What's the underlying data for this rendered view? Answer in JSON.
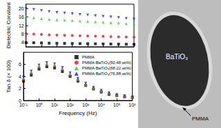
{
  "chart_data": [
    {
      "type": "scatter",
      "ylabel": "Dielectric Constant",
      "log": "x",
      "tick_labels": "y",
      "x": [
        0.1,
        0.316,
        1,
        3.16,
        10,
        31.6,
        100,
        316,
        1000,
        3162,
        10000,
        31623,
        100000,
        316228,
        1000000
      ],
      "xlim": [
        0.1,
        1000000
      ],
      "xticks": [
        0.1,
        1,
        10,
        100,
        1000,
        10000,
        100000,
        1000000
      ],
      "ylim": [
        2,
        22
      ],
      "yticks": [
        4,
        8,
        12,
        16,
        20
      ],
      "series": [
        {
          "color": "#000000",
          "marker": "square",
          "values": [
            4.0,
            3.9,
            3.8,
            3.7,
            3.65,
            3.6,
            3.55,
            3.5,
            3.45,
            3.4,
            3.35,
            3.3,
            3.25,
            3.2,
            3.15
          ]
        },
        {
          "color": "#e8141c",
          "marker": "circle",
          "values": [
            8.2,
            8.0,
            7.8,
            7.6,
            7.5,
            7.4,
            7.3,
            7.2,
            7.1,
            7.0,
            6.9,
            6.8,
            6.7,
            6.6,
            6.5
          ]
        },
        {
          "color": "#1fd61f",
          "marker": "triangle",
          "values": [
            16.0,
            15.6,
            15.2,
            14.9,
            14.7,
            14.5,
            14.3,
            14.1,
            13.9,
            13.7,
            13.5,
            13.3,
            13.1,
            12.9,
            12.7
          ]
        },
        {
          "color": "#1c1cf0",
          "marker": "triangle-down",
          "values": [
            20.0,
            19.5,
            19.0,
            18.5,
            18.1,
            17.8,
            17.5,
            17.2,
            16.9,
            16.6,
            16.3,
            16.0,
            15.7,
            15.3,
            15.0
          ]
        }
      ]
    },
    {
      "type": "scatter",
      "xlabel": "Frequency (Hz)",
      "ylabel": "Tan δ (× 100)",
      "log": "x",
      "legend": "upper right",
      "x": [
        0.1,
        0.316,
        1,
        3.16,
        10,
        31.6,
        100,
        316,
        1000,
        3162,
        10000,
        31623,
        100000,
        316228,
        1000000
      ],
      "xlim": [
        0.1,
        1000000
      ],
      "xticks": [
        {
          "value": 0.1,
          "label": "10⁻¹"
        },
        {
          "value": 1,
          "label": "10⁰"
        },
        {
          "value": 10,
          "label": "10¹"
        },
        {
          "value": 100,
          "label": "10²"
        },
        {
          "value": 1000,
          "label": "10³"
        },
        {
          "value": 10000,
          "label": "10⁴"
        },
        {
          "value": 100000,
          "label": "10⁵"
        },
        {
          "value": 1000000,
          "label": "10⁶"
        }
      ],
      "ylim": [
        0,
        8
      ],
      "yticks": [
        0,
        2,
        4,
        6
      ],
      "series": [
        {
          "name": "PMMA",
          "color": "#000000",
          "marker": "square",
          "values": [
            3.2,
            4.2,
            5.2,
            5.6,
            5.4,
            4.8,
            4.0,
            3.2,
            2.5,
            1.9,
            1.4,
            1.0,
            0.8,
            0.6,
            0.5
          ]
        },
        {
          "name": "PMMA-BaTiO₃(50.48 wt%)",
          "color": "#e8141c",
          "marker": "circle",
          "values": [
            3.5,
            4.5,
            5.5,
            5.9,
            5.7,
            5.1,
            4.2,
            3.4,
            2.6,
            2.0,
            1.5,
            1.1,
            0.8,
            0.6,
            0.5
          ]
        },
        {
          "name": "PMMA-BaTiO₃(68.22 wt%)",
          "color": "#1fd61f",
          "marker": "triangle",
          "values": [
            3.7,
            4.7,
            5.7,
            6.1,
            5.9,
            5.3,
            4.4,
            3.5,
            2.7,
            2.1,
            1.6,
            1.2,
            0.9,
            0.7,
            0.6
          ]
        },
        {
          "name": "PMMA-BaTiO₃(76.88 wt%)",
          "color": "#1c1cf0",
          "marker": "triangle-down",
          "values": [
            3.9,
            4.9,
            5.9,
            6.3,
            6.1,
            5.5,
            4.6,
            3.7,
            2.9,
            2.2,
            1.7,
            1.3,
            1.0,
            0.8,
            0.6
          ]
        }
      ]
    }
  ],
  "micrograph": {
    "core_label": "BaTiO₃",
    "shell_label": "PMMA"
  }
}
